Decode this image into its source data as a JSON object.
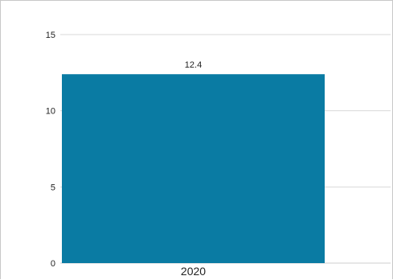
{
  "chart_data": {
    "type": "bar",
    "categories": [
      "2020"
    ],
    "values": [
      12.4
    ],
    "data_labels": [
      "12.4"
    ],
    "y_ticks": [
      0,
      5,
      10,
      15
    ],
    "ylim": [
      0,
      15
    ],
    "grid": true,
    "bar_color": "#0A7BA3"
  }
}
